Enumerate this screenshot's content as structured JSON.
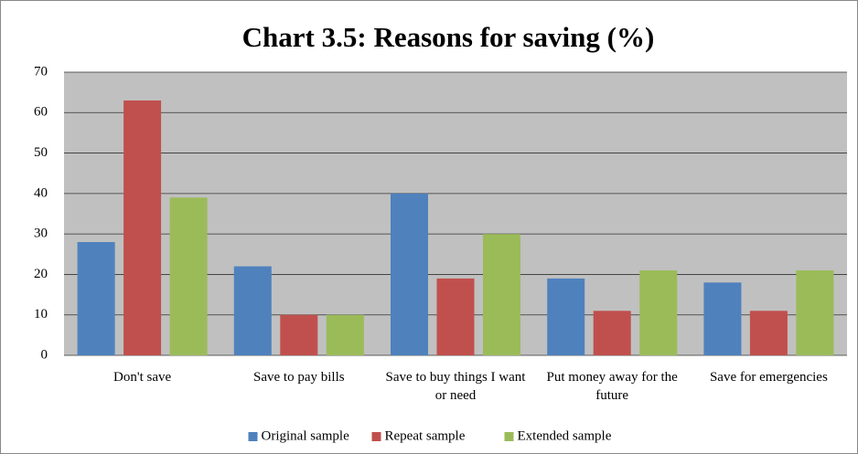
{
  "chart_data": {
    "type": "bar",
    "title": "Chart 3.5: Reasons for saving (%)",
    "categories": [
      "Don't save",
      "Save to pay bills",
      "Save to buy things I want or need",
      "Put money away for the future",
      "Save for emergencies"
    ],
    "series": [
      {
        "name": "Original sample",
        "color": "#4f81bd",
        "values": [
          28,
          22,
          40,
          19,
          18
        ]
      },
      {
        "name": "Repeat sample",
        "color": "#c0504d",
        "values": [
          63,
          10,
          19,
          11,
          11
        ]
      },
      {
        "name": "Extended sample",
        "color": "#9bbb59",
        "values": [
          39,
          10,
          30,
          21,
          21
        ]
      }
    ],
    "ylim": [
      0,
      70
    ],
    "yticks": [
      0,
      10,
      20,
      30,
      40,
      50,
      60,
      70
    ],
    "grid": true,
    "legend": "bottom"
  }
}
